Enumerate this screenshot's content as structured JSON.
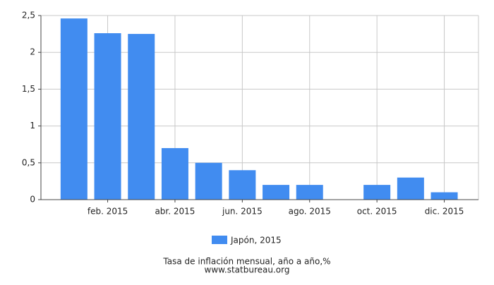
{
  "chart_data": {
    "type": "bar",
    "title": "Tasa de inflación mensual, año a año,%",
    "source": "www.statbureau.org",
    "categories": [
      null,
      "feb. 2015",
      null,
      "abr. 2015",
      null,
      "jun. 2015",
      null,
      "ago. 2015",
      null,
      "oct. 2015",
      null,
      "dic. 2015"
    ],
    "series": [
      {
        "name": "Japón, 2015",
        "color": "#418cf0",
        "values": [
          2.46,
          2.26,
          2.25,
          0.7,
          0.5,
          0.4,
          0.2,
          0.2,
          0,
          0.2,
          0.3,
          0.1
        ]
      }
    ],
    "ylim": [
      0,
      2.5
    ],
    "yticks": [
      0,
      {
        "value": 0.5,
        "label": "0,5"
      },
      1,
      {
        "value": 1.5,
        "label": "1,5"
      },
      2,
      {
        "value": 2.5,
        "label": "2,5"
      }
    ],
    "grid": true
  }
}
